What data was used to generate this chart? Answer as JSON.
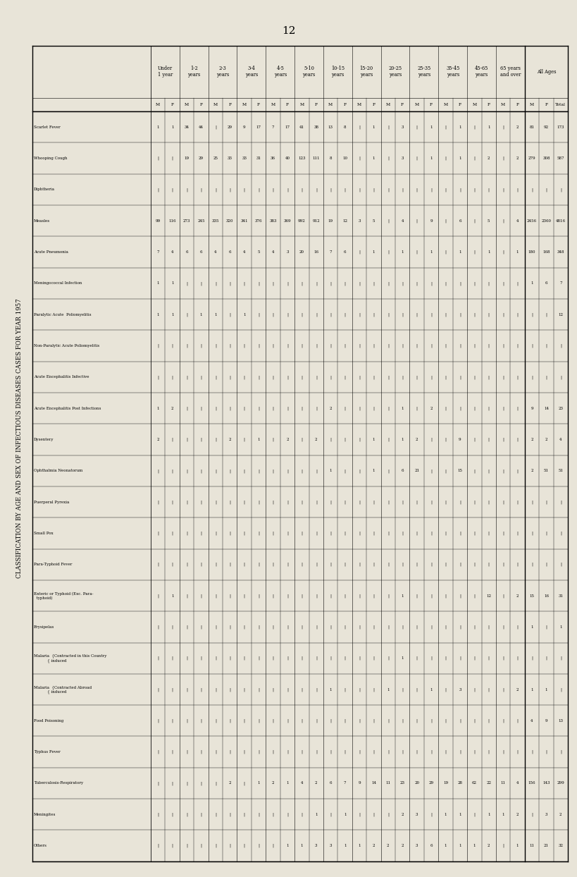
{
  "page_number": "12",
  "title": "CLASSIFICATION BY AGE AND SEX OF INFECTIOUS DISEASES CASES FOR YEAR 1957",
  "bg_color": "#e8e4d8",
  "diseases": [
    "Scarlet Fever",
    "Whooping Cough",
    "Diphtheria",
    "Measles",
    "Acute Pneumonia",
    "Meningococcal Infection",
    "Paralytic Acute Poliomyelitis",
    "Non-Paralytic Acute Poliomyelitis",
    "Acute Encephalitis Infective",
    "Acute Encephalitis Post Infections",
    "Dysentery",
    "Ophthalmia Neonatorum",
    "Puerperal Pyrexia",
    "Small Pox",
    "Para-Typhoid Fever",
    "Enteric or Typhoid (Exc. Para-typhoid)",
    "Erysipelas",
    "Malaria (Contracted in this Country induced)",
    "Malaria (Contracted Abroad induced)",
    "Food Poisoning",
    "Typhus Fever",
    "Tuberculosis - Respiratory",
    "Meningitis",
    "Others"
  ],
  "group_labels": [
    "Under 1 year",
    "1-2 years",
    "2-3 years",
    "3-4 years",
    "4-5 years",
    "5-10 years",
    "10-15 years",
    "15-20 years",
    "20-25 years",
    "25-35 years",
    "35-45 years",
    "45-65 years",
    "65 years and over",
    "All Ages"
  ],
  "col_widths_rel": [
    2,
    2,
    2,
    2,
    2,
    2,
    2,
    2,
    2,
    2,
    2,
    2,
    2,
    3
  ]
}
